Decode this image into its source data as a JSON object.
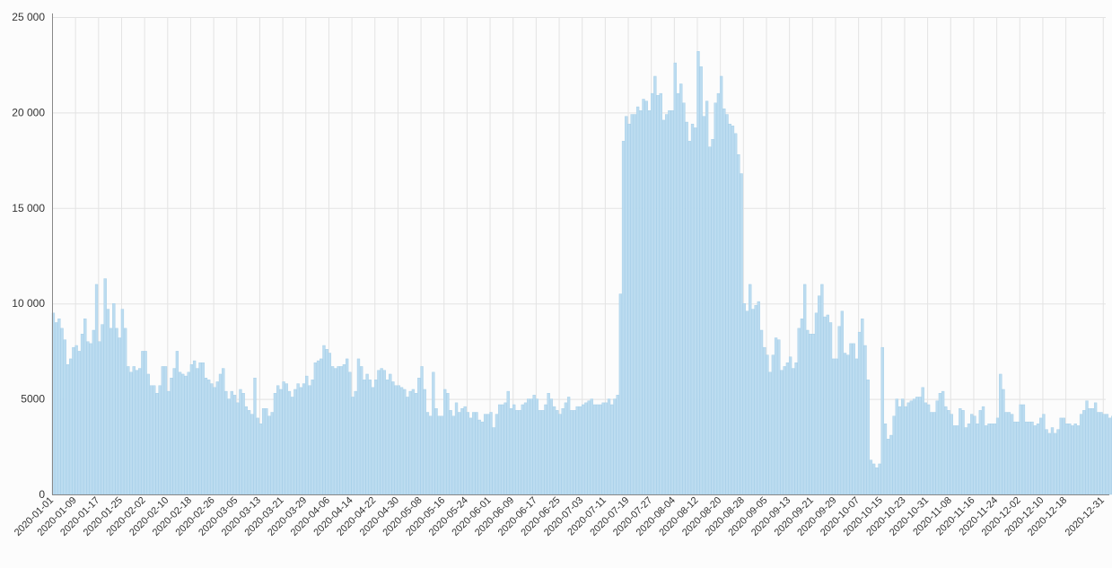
{
  "chart_data": {
    "type": "bar",
    "title": "",
    "xlabel": "",
    "ylabel": "",
    "ylim": [
      0,
      25000
    ],
    "yticks": [
      0,
      5000,
      10000,
      15000,
      20000,
      25000
    ],
    "ytick_labels": [
      "0",
      "5000",
      "10 000",
      "15 000",
      "20 000",
      "25 000"
    ],
    "grid": true,
    "x_start": "2020-01-01",
    "x_end": "2020-12-31",
    "xtick_labels": [
      "2020-01-01",
      "2020-01-09",
      "2020-01-17",
      "2020-01-25",
      "2020-02-02",
      "2020-02-10",
      "2020-02-18",
      "2020-02-26",
      "2020-03-05",
      "2020-03-13",
      "2020-03-21",
      "2020-03-29",
      "2020-04-06",
      "2020-04-14",
      "2020-04-22",
      "2020-04-30",
      "2020-05-08",
      "2020-05-16",
      "2020-05-24",
      "2020-06-01",
      "2020-06-09",
      "2020-06-17",
      "2020-06-25",
      "2020-07-03",
      "2020-07-11",
      "2020-07-19",
      "2020-07-27",
      "2020-08-04",
      "2020-08-12",
      "2020-08-20",
      "2020-08-28",
      "2020-09-05",
      "2020-09-13",
      "2020-09-21",
      "2020-09-29",
      "2020-10-07",
      "2020-10-15",
      "2020-10-23",
      "2020-10-31",
      "2020-11-08",
      "2020-11-16",
      "2020-11-24",
      "2020-12-02",
      "2020-12-10",
      "2020-12-18",
      "2020-12-31"
    ],
    "values": [
      9500,
      9000,
      9200,
      8700,
      8100,
      6800,
      7100,
      7700,
      7800,
      7500,
      8400,
      9200,
      8000,
      7900,
      8600,
      11000,
      8000,
      8900,
      11300,
      9700,
      8700,
      10000,
      8700,
      8200,
      9700,
      8700,
      6700,
      6400,
      6700,
      6500,
      6600,
      7500,
      7500,
      6300,
      5700,
      5700,
      5300,
      5700,
      6700,
      6700,
      5400,
      6100,
      6600,
      7500,
      6400,
      6300,
      6200,
      6400,
      6800,
      7000,
      6600,
      6900,
      6900,
      6100,
      6000,
      5800,
      5600,
      5900,
      6300,
      6600,
      5400,
      5000,
      5400,
      5200,
      4800,
      5500,
      5300,
      4600,
      4400,
      4200,
      6100,
      4000,
      3700,
      4500,
      4500,
      4100,
      4300,
      5300,
      5700,
      5500,
      5900,
      5800,
      5400,
      5100,
      5500,
      5800,
      5600,
      5800,
      6200,
      5700,
      6000,
      6900,
      7000,
      7100,
      7800,
      7600,
      7400,
      6700,
      6600,
      6700,
      6700,
      6800,
      7100,
      6400,
      5100,
      5400,
      7100,
      6700,
      6000,
      6300,
      6000,
      5600,
      6000,
      6500,
      6600,
      6500,
      6000,
      6300,
      5900,
      5700,
      5700,
      5600,
      5500,
      5100,
      5400,
      5500,
      5300,
      6100,
      6700,
      5500,
      4300,
      4100,
      6400,
      4500,
      4100,
      4100,
      5500,
      5300,
      4400,
      4100,
      4800,
      4300,
      4500,
      4600,
      4300,
      4000,
      4300,
      4300,
      3900,
      3800,
      4200,
      4200,
      4300,
      3500,
      4200,
      4700,
      4700,
      4800,
      5400,
      4500,
      4700,
      4400,
      4400,
      4700,
      4800,
      5000,
      5000,
      5200,
      5000,
      4400,
      4400,
      4700,
      5300,
      5000,
      4600,
      4400,
      4200,
      4500,
      4800,
      5100,
      4400,
      4400,
      4600,
      4600,
      4700,
      4800,
      4900,
      5000,
      4700,
      4700,
      4700,
      4800,
      4800,
      5000,
      4700,
      5000,
      5200,
      10500,
      18500,
      19800,
      19400,
      19900,
      19900,
      20300,
      20100,
      20700,
      20600,
      20100,
      21000,
      21900,
      20900,
      21000,
      19600,
      19900,
      20100,
      20100,
      22600,
      21000,
      21500,
      20500,
      19500,
      18500,
      19400,
      19200,
      23200,
      22400,
      19800,
      20600,
      18200,
      18600,
      20500,
      21000,
      21900,
      20200,
      19900,
      19400,
      19300,
      18900,
      17800,
      16800,
      10000,
      9600,
      11000,
      9700,
      9900,
      10100,
      8600,
      7700,
      7300,
      6400,
      7300,
      8200,
      8100,
      6500,
      6700,
      6900,
      7200,
      6600,
      6900,
      8700,
      9200,
      11000,
      8600,
      8400,
      8400,
      9500,
      10400,
      11000,
      9300,
      9400,
      9000,
      7100,
      7100,
      8800,
      9600,
      7400,
      7300,
      7900,
      7900,
      7100,
      8500,
      9200,
      7800,
      6000,
      1800,
      1600,
      1400,
      1600,
      7700,
      3700,
      2900,
      3100,
      4100,
      5000,
      4600,
      5000,
      4600,
      4800,
      4900,
      5000,
      5100,
      5100,
      5600,
      4800,
      4700,
      4300,
      4300,
      4900,
      5300,
      5400,
      4600,
      4400,
      4200,
      3600,
      3600,
      4500,
      4400,
      3500,
      3700,
      4200,
      4100,
      3700,
      4400,
      4600,
      3600,
      3700,
      3700,
      3700,
      4000,
      6300,
      5500,
      4300,
      4300,
      4200,
      3800,
      3800,
      4700,
      4700,
      3800,
      3800,
      3800,
      3600,
      3700,
      4000,
      4200,
      3400,
      3200,
      3500,
      3200,
      3400,
      4000,
      4000,
      3700,
      3700,
      3600,
      3700,
      3600,
      4200,
      4400,
      4900,
      4500,
      4500,
      4800,
      4300,
      4300,
      4200,
      4200,
      4000,
      4100,
      4200
    ]
  }
}
